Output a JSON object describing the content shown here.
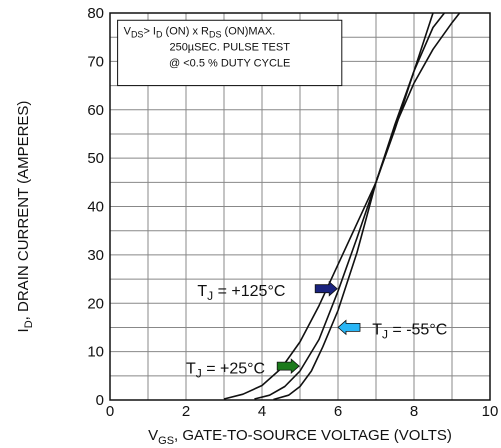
{
  "chart_data": {
    "type": "line",
    "xlabel_prefix": "V",
    "xlabel_sub": "GS",
    "xlabel_rest": ", GATE-TO-SOURCE VOLTAGE (VOLTS)",
    "ylabel_prefix": "I",
    "ylabel_sub": "D",
    "ylabel_rest": ", DRAIN CURRENT (AMPERES)",
    "xlim": [
      0,
      10
    ],
    "ylim": [
      0,
      80
    ],
    "xticks": [
      0,
      2,
      4,
      6,
      8,
      10
    ],
    "yticks": [
      0,
      10,
      20,
      30,
      40,
      50,
      60,
      70,
      80
    ],
    "grid": true,
    "note": {
      "line1": {
        "a": "V",
        "a_sub": "DS",
        "b": "> I",
        "b_sub": "D",
        "c": " (ON)  x  R",
        "c_sub": "DS",
        "d": " (ON)MAX."
      },
      "line2": "250µSEC.  PULSE  TEST",
      "line3": "@  <0.5  %  DUTY  CYCLE"
    },
    "series": [
      {
        "name": "T_J = +125°C",
        "label": {
          "prefix": "T",
          "sub": "J",
          "rest": " = +125°C"
        },
        "arrow_color": "#1a237e",
        "x": [
          3.0,
          3.5,
          4.0,
          4.5,
          5.0,
          5.5,
          6.0,
          6.5,
          7.0,
          7.5,
          8.0,
          8.5
        ],
        "y": [
          0.2,
          1.2,
          3.0,
          6.5,
          12.0,
          19.5,
          28.0,
          36.5,
          45.0,
          56.0,
          68.0,
          80.0
        ]
      },
      {
        "name": "T_J = +25°C",
        "label": {
          "prefix": "T",
          "sub": "J",
          "rest": " = +25°C"
        },
        "arrow_color": "#1b7a1b",
        "x": [
          3.8,
          4.2,
          4.6,
          5.0,
          5.5,
          6.0,
          6.5,
          7.0,
          7.5,
          8.0,
          8.5,
          8.8
        ],
        "y": [
          0.2,
          1.0,
          2.8,
          6.0,
          12.5,
          22.5,
          33.5,
          45.0,
          57.0,
          68.0,
          77.0,
          80.0
        ]
      },
      {
        "name": "T_J = -55°C",
        "label": {
          "prefix": "T",
          "sub": "J",
          "rest": " = -55°C"
        },
        "arrow_color": "#29b6f6",
        "x": [
          4.3,
          4.7,
          5.0,
          5.3,
          5.6,
          6.0,
          6.5,
          7.0,
          7.5,
          8.0,
          8.5,
          9.0,
          9.2
        ],
        "y": [
          0.1,
          1.0,
          2.8,
          6.0,
          11.0,
          18.5,
          30.5,
          45.0,
          56.5,
          65.5,
          72.5,
          78.0,
          80.0
        ]
      }
    ]
  }
}
